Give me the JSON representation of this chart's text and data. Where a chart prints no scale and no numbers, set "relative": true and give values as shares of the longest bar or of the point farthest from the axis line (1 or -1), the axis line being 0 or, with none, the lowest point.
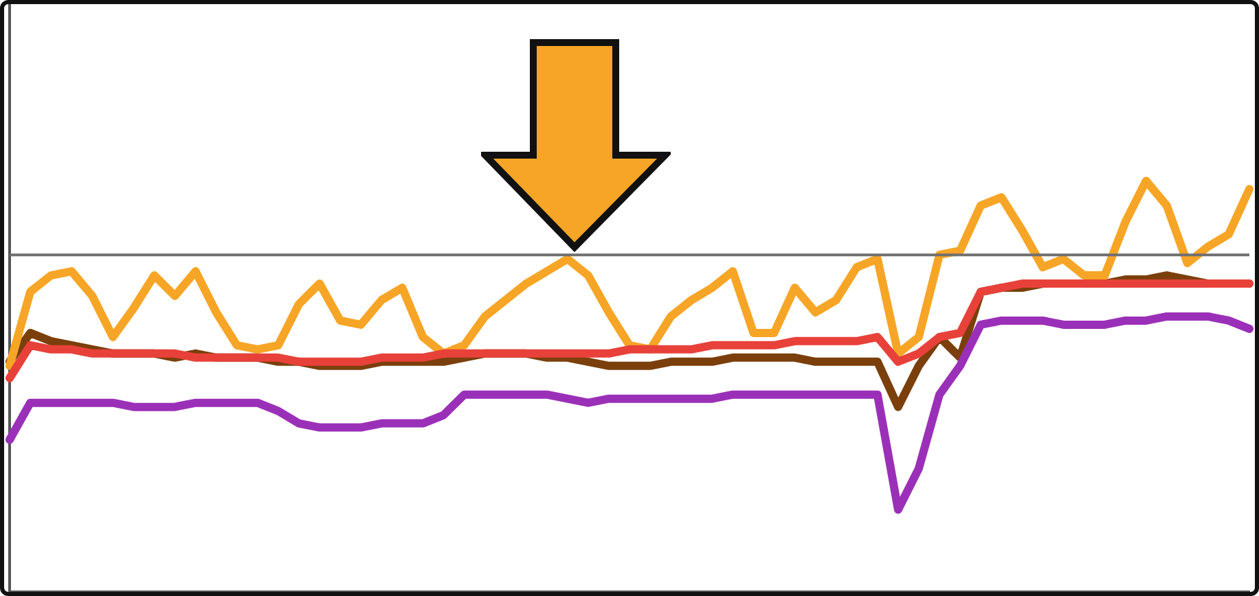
{
  "chart_data": {
    "type": "line",
    "relative": true,
    "marker": "none",
    "categories": [
      null,
      null,
      null,
      null,
      null,
      null,
      null,
      null,
      null,
      null,
      null,
      null,
      null,
      null,
      null,
      null,
      null,
      null,
      null,
      null,
      null,
      null,
      null,
      null,
      null,
      null,
      null,
      null,
      null,
      null,
      null,
      null,
      null,
      null,
      null,
      null,
      null,
      null,
      null,
      null,
      null,
      null,
      null,
      null,
      null,
      null,
      null,
      null,
      null,
      null,
      null,
      null,
      null,
      null,
      null,
      null,
      null,
      null,
      null,
      null,
      null
    ],
    "series": [
      {
        "color": "#e8413a",
        "values": [
          0.52,
          0.6,
          0.59,
          0.59,
          0.58,
          0.58,
          0.58,
          0.58,
          0.58,
          0.57,
          0.57,
          0.57,
          0.57,
          0.57,
          0.56,
          0.56,
          0.56,
          0.56,
          0.57,
          0.57,
          0.57,
          0.58,
          0.58,
          0.58,
          0.58,
          0.58,
          0.58,
          0.58,
          0.58,
          0.58,
          0.59,
          0.59,
          0.59,
          0.59,
          0.6,
          0.6,
          0.6,
          0.6,
          0.61,
          0.61,
          0.61,
          0.61,
          0.62,
          0.56,
          0.58,
          0.62,
          0.63,
          0.73,
          0.74,
          0.75,
          0.75,
          0.75,
          0.75,
          0.75,
          0.75,
          0.75,
          0.75,
          0.75,
          0.75,
          0.75,
          0.75
        ]
      },
      {
        "color": "#f7a526",
        "values": [
          0.55,
          0.73,
          0.77,
          0.78,
          0.72,
          0.62,
          0.69,
          0.77,
          0.72,
          0.78,
          0.68,
          0.6,
          0.59,
          0.6,
          0.7,
          0.75,
          0.66,
          0.65,
          0.71,
          0.74,
          0.62,
          0.58,
          0.6,
          0.67,
          0.71,
          0.75,
          0.78,
          0.81,
          0.77,
          0.68,
          0.6,
          0.59,
          0.67,
          0.71,
          0.74,
          0.78,
          0.63,
          0.63,
          0.74,
          0.68,
          0.71,
          0.79,
          0.81,
          0.58,
          0.62,
          0.82,
          0.83,
          0.94,
          0.96,
          0.88,
          0.79,
          0.81,
          0.77,
          0.77,
          0.9,
          1.0,
          0.94,
          0.8,
          0.84,
          0.87,
          0.98
        ]
      },
      {
        "color": "#9b30b8",
        "values": [
          0.37,
          0.46,
          0.46,
          0.46,
          0.46,
          0.46,
          0.45,
          0.45,
          0.45,
          0.46,
          0.46,
          0.46,
          0.46,
          0.44,
          0.41,
          0.4,
          0.4,
          0.4,
          0.41,
          0.41,
          0.41,
          0.43,
          0.48,
          0.48,
          0.48,
          0.48,
          0.48,
          0.47,
          0.46,
          0.47,
          0.47,
          0.47,
          0.47,
          0.47,
          0.47,
          0.48,
          0.48,
          0.48,
          0.48,
          0.48,
          0.48,
          0.48,
          0.48,
          0.2,
          0.3,
          0.48,
          0.55,
          0.65,
          0.66,
          0.66,
          0.66,
          0.65,
          0.65,
          0.65,
          0.66,
          0.66,
          0.67,
          0.67,
          0.67,
          0.66,
          0.64
        ]
      },
      {
        "color": "#7b3f0c",
        "values": [
          0.56,
          0.63,
          0.61,
          0.6,
          0.59,
          0.58,
          0.58,
          0.58,
          0.57,
          0.58,
          0.57,
          0.57,
          0.57,
          0.56,
          0.56,
          0.55,
          0.55,
          0.55,
          0.56,
          0.56,
          0.56,
          0.56,
          0.57,
          0.58,
          0.58,
          0.58,
          0.57,
          0.57,
          0.56,
          0.55,
          0.55,
          0.55,
          0.56,
          0.56,
          0.56,
          0.57,
          0.57,
          0.57,
          0.57,
          0.56,
          0.56,
          0.56,
          0.56,
          0.45,
          0.55,
          0.62,
          0.57,
          0.73,
          0.74,
          0.74,
          0.75,
          0.75,
          0.75,
          0.75,
          0.76,
          0.76,
          0.77,
          0.76,
          0.75,
          0.75,
          0.75
        ]
      }
    ],
    "ref_lines": [
      {
        "axis": "y",
        "value": 0.82,
        "color": "#707070"
      }
    ]
  }
}
